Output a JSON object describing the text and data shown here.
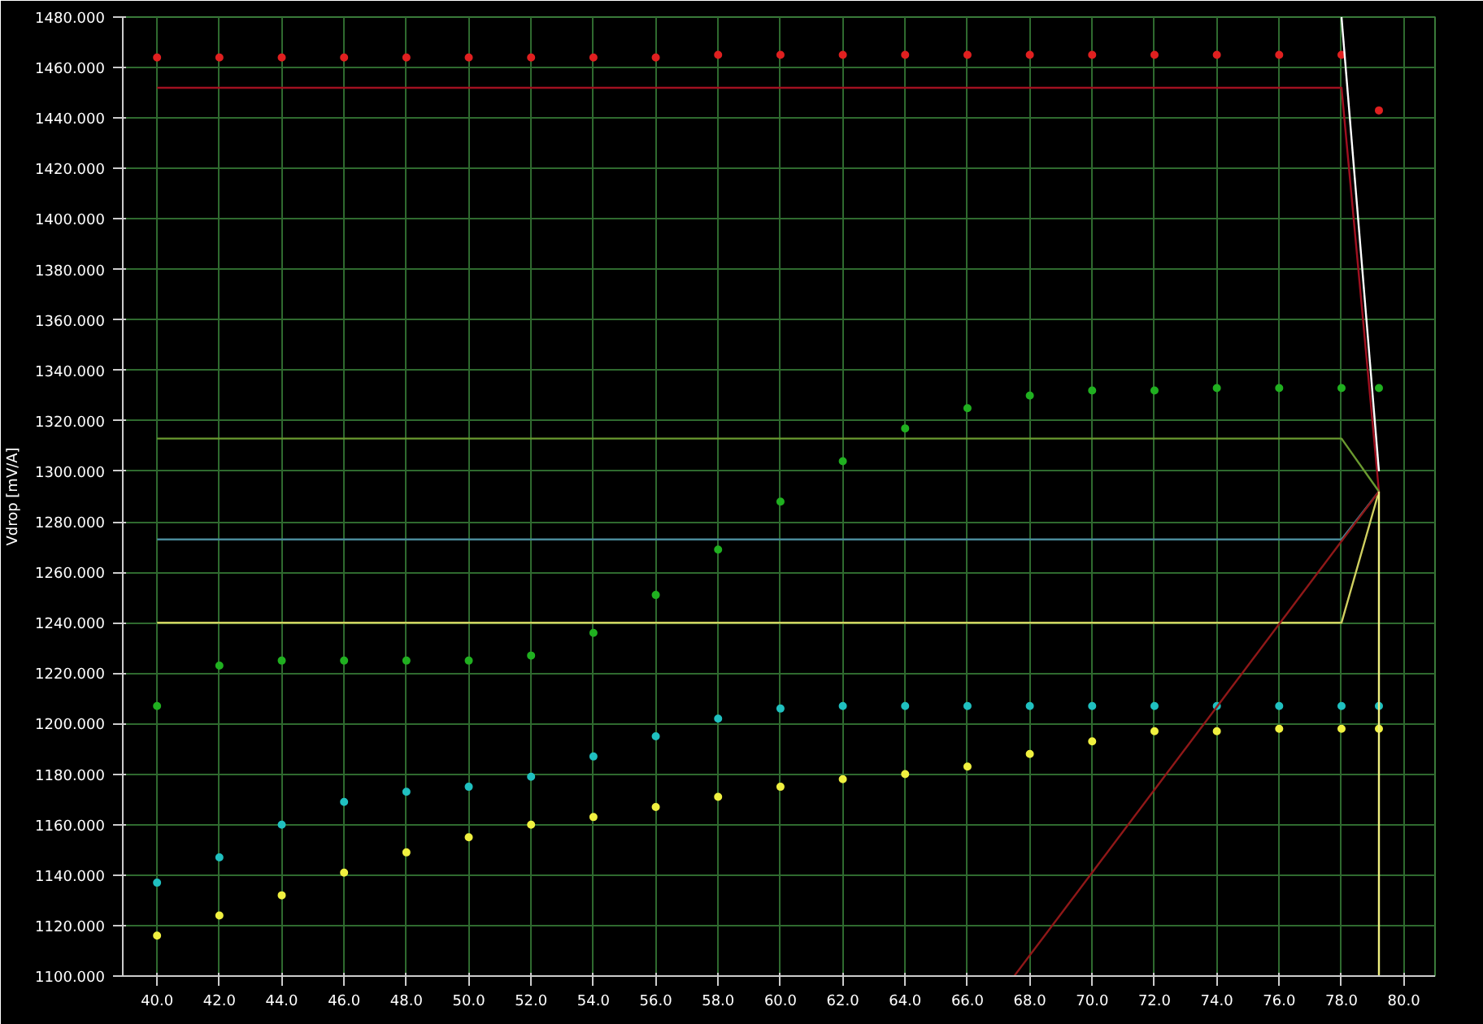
{
  "chart_data": {
    "type": "scatter",
    "ylabel": "Vdrop [mV/A]",
    "xlim": [
      38.9,
      81
    ],
    "ylim": [
      1100,
      1480
    ],
    "xticks": [
      {
        "value": 40,
        "label": "40.0"
      },
      {
        "value": 42,
        "label": "42.0"
      },
      {
        "value": 44,
        "label": "44.0"
      },
      {
        "value": 46,
        "label": "46.0"
      },
      {
        "value": 48,
        "label": "48.0"
      },
      {
        "value": 50,
        "label": "50.0"
      },
      {
        "value": 52,
        "label": "52.0"
      },
      {
        "value": 54,
        "label": "54.0"
      },
      {
        "value": 56,
        "label": "56.0"
      },
      {
        "value": 58,
        "label": "58.0"
      },
      {
        "value": 60,
        "label": "60.0"
      },
      {
        "value": 62,
        "label": "62.0"
      },
      {
        "value": 64,
        "label": "64.0"
      },
      {
        "value": 66,
        "label": "66.0"
      },
      {
        "value": 68,
        "label": "68.0"
      },
      {
        "value": 70,
        "label": "70.0"
      },
      {
        "value": 72,
        "label": "72.0"
      },
      {
        "value": 74,
        "label": "74.0"
      },
      {
        "value": 76,
        "label": "76.0"
      },
      {
        "value": 78,
        "label": "78.0"
      },
      {
        "value": 80,
        "label": "80.0"
      }
    ],
    "yticks": [
      {
        "value": 1100,
        "label": "1100.000"
      },
      {
        "value": 1120,
        "label": "1120.000"
      },
      {
        "value": 1140,
        "label": "1140.000"
      },
      {
        "value": 1160,
        "label": "1160.000"
      },
      {
        "value": 1180,
        "label": "1180.000"
      },
      {
        "value": 1200,
        "label": "1200.000"
      },
      {
        "value": 1220,
        "label": "1220.000"
      },
      {
        "value": 1240,
        "label": "1240.000"
      },
      {
        "value": 1260,
        "label": "1260.000"
      },
      {
        "value": 1280,
        "label": "1280.000"
      },
      {
        "value": 1300,
        "label": "1300.000"
      },
      {
        "value": 1320,
        "label": "1320.000"
      },
      {
        "value": 1340,
        "label": "1340.000"
      },
      {
        "value": 1360,
        "label": "1360.000"
      },
      {
        "value": 1380,
        "label": "1380.000"
      },
      {
        "value": 1400,
        "label": "1400.000"
      },
      {
        "value": 1420,
        "label": "1420.000"
      },
      {
        "value": 1440,
        "label": "1440.000"
      },
      {
        "value": 1460,
        "label": "1460.000"
      },
      {
        "value": 1480,
        "label": "1480.000"
      }
    ],
    "x": [
      40,
      42,
      44,
      46,
      48,
      50,
      52,
      54,
      56,
      58,
      60,
      62,
      64,
      66,
      68,
      70,
      72,
      74,
      76,
      78,
      79.2
    ],
    "grid": true,
    "marker": "circle",
    "series": [
      {
        "color": "#e02020",
        "values": [
          1464,
          1464,
          1464,
          1464,
          1464,
          1464,
          1464,
          1464,
          1464,
          1465,
          1465,
          1465,
          1465,
          1465,
          1465,
          1465,
          1465,
          1465,
          1465,
          1465,
          1443
        ]
      },
      {
        "color": "#20b020",
        "values": [
          1207,
          1223,
          1225,
          1225,
          1225,
          1225,
          1227,
          1236,
          1251,
          1269,
          1288,
          1304,
          1317,
          1325,
          1330,
          1332,
          1332,
          1333,
          1333,
          1333,
          1333
        ]
      },
      {
        "color": "#20c0c0",
        "values": [
          1137,
          1147,
          1160,
          1169,
          1173,
          1175,
          1179,
          1187,
          1195,
          1202,
          1206,
          1207,
          1207,
          1207,
          1207,
          1207,
          1207,
          1207,
          1207,
          1207,
          1207
        ]
      },
      {
        "color": "#f0f040",
        "values": [
          1116,
          1124,
          1132,
          1141,
          1149,
          1155,
          1160,
          1163,
          1167,
          1171,
          1175,
          1178,
          1180,
          1183,
          1188,
          1193,
          1197,
          1197,
          1198,
          1198,
          1198
        ]
      },
      {
        "type": "line",
        "marker": "none",
        "color": "#a01020",
        "x": [
          40,
          78,
          79.2
        ],
        "values": [
          1452,
          1452,
          1292
        ]
      },
      {
        "type": "line",
        "marker": "none",
        "color": "#6a9a30",
        "x": [
          40,
          78,
          79.2
        ],
        "values": [
          1313,
          1313,
          1292
        ]
      },
      {
        "type": "line",
        "marker": "none",
        "color": "#4a8a9a",
        "x": [
          40,
          78,
          79.2
        ],
        "values": [
          1273,
          1273,
          1292
        ]
      },
      {
        "type": "line",
        "marker": "none",
        "color": "#d0d060",
        "x": [
          40,
          78,
          79.2
        ],
        "values": [
          1240,
          1240,
          1292
        ]
      },
      {
        "type": "line",
        "marker": "none",
        "color": "#901818",
        "x": [
          67.5,
          79.2
        ],
        "values": [
          1100,
          1292
        ]
      },
      {
        "type": "line",
        "marker": "none",
        "color": "#ffffff",
        "x": [
          78,
          79.2
        ],
        "values": [
          1480,
          1300
        ]
      },
      {
        "type": "line",
        "marker": "none",
        "color": "#f0f080",
        "x": [
          79.2,
          79.2
        ],
        "values": [
          1100,
          1292
        ]
      }
    ]
  }
}
